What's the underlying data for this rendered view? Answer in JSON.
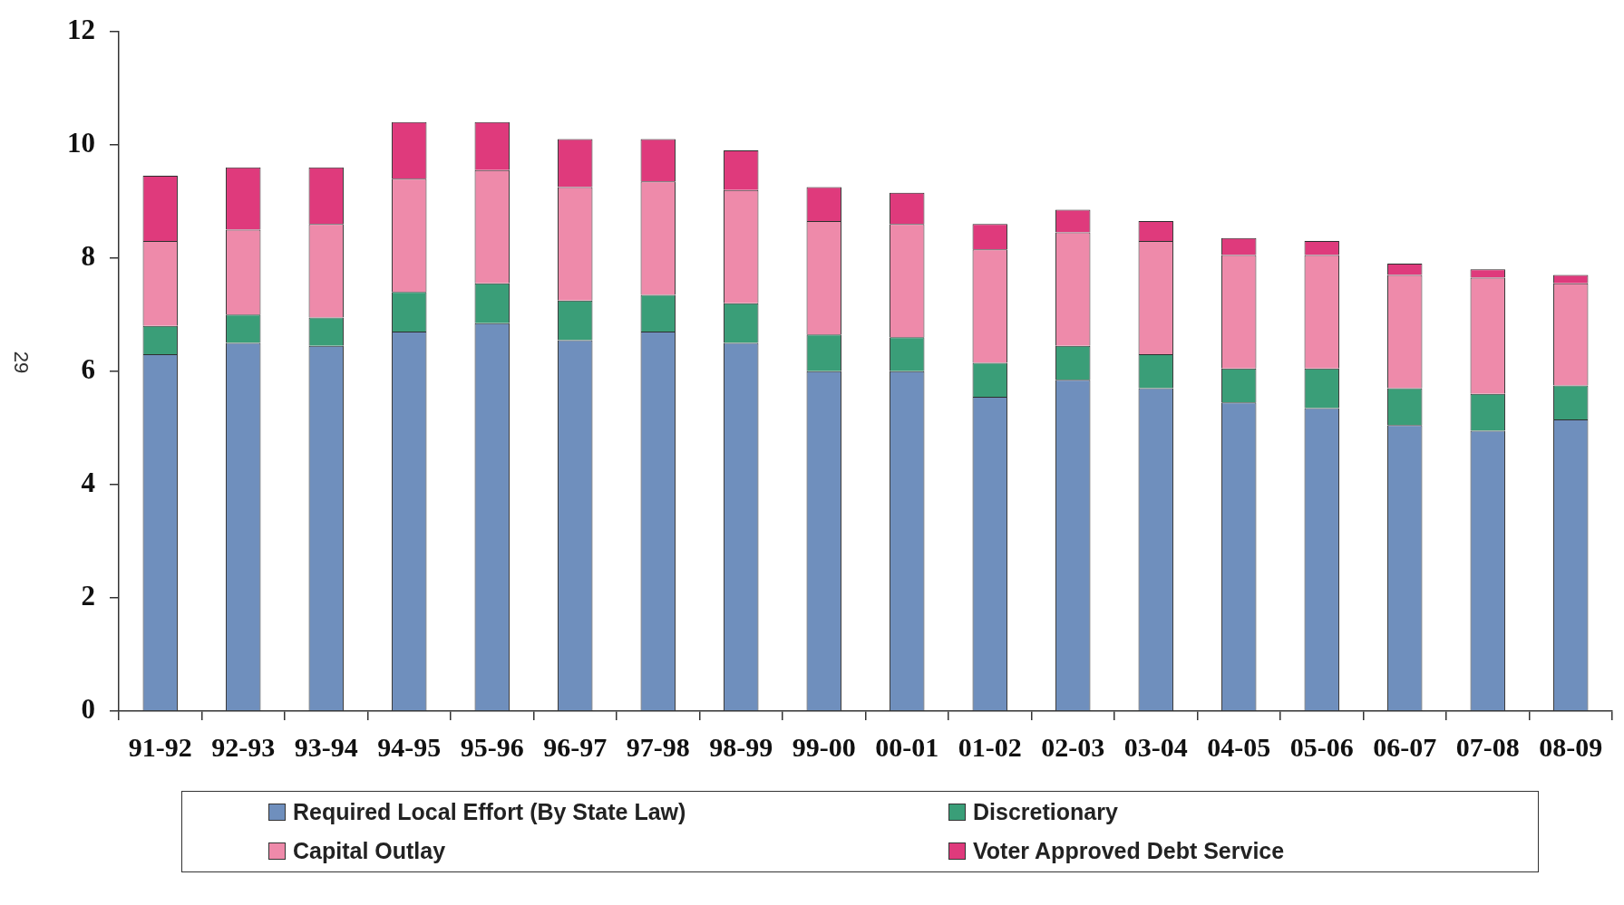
{
  "chart_data": {
    "type": "bar",
    "stacked": true,
    "categories": [
      "91-92",
      "92-93",
      "93-94",
      "94-95",
      "95-96",
      "96-97",
      "97-98",
      "98-99",
      "99-00",
      "00-01",
      "01-02",
      "02-03",
      "03-04",
      "04-05",
      "05-06",
      "06-07",
      "07-08",
      "08-09"
    ],
    "series": [
      {
        "name": "Required Local Effort (By State Law)",
        "color": "#6f8fbd",
        "values": [
          6.3,
          6.5,
          6.45,
          6.7,
          6.85,
          6.55,
          6.7,
          6.5,
          6.0,
          6.0,
          5.55,
          5.85,
          5.7,
          5.45,
          5.35,
          5.05,
          4.95,
          5.15
        ]
      },
      {
        "name": "Discretionary",
        "color": "#3a9e78",
        "values": [
          0.5,
          0.5,
          0.5,
          0.7,
          0.7,
          0.7,
          0.65,
          0.7,
          0.65,
          0.6,
          0.6,
          0.6,
          0.6,
          0.6,
          0.7,
          0.65,
          0.65,
          0.6
        ]
      },
      {
        "name": "Capital Outlay",
        "color": "#ee8aaa",
        "values": [
          1.5,
          1.5,
          1.65,
          2.0,
          2.0,
          2.0,
          2.0,
          2.0,
          2.0,
          2.0,
          2.0,
          2.0,
          2.0,
          2.0,
          2.0,
          2.0,
          2.05,
          1.8
        ]
      },
      {
        "name": "Voter Approved Debt Service",
        "color": "#df3a7c",
        "values": [
          1.15,
          1.1,
          1.0,
          1.0,
          0.85,
          0.85,
          0.75,
          0.7,
          0.6,
          0.55,
          0.45,
          0.4,
          0.35,
          0.3,
          0.25,
          0.2,
          0.15,
          0.15
        ]
      }
    ],
    "ylim": [
      0,
      12
    ],
    "yticks": [
      0,
      2,
      4,
      6,
      8,
      10,
      12
    ],
    "legend": "bottom",
    "annotations": [
      "29"
    ]
  }
}
